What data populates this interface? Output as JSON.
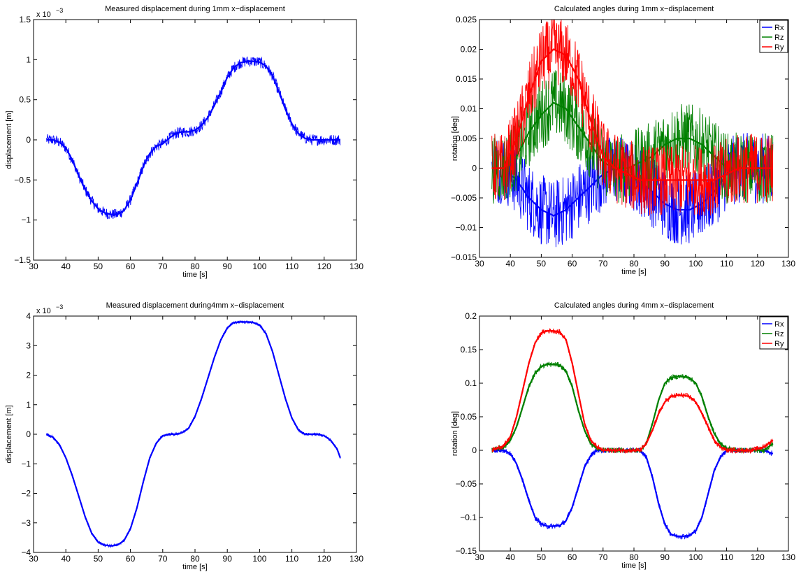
{
  "colors": {
    "Rx": "#0000ff",
    "Rz": "#008000",
    "Ry": "#ff0000",
    "disp": "#0000ff"
  },
  "chart_data": [
    {
      "type": "line",
      "title": "Measured displacement during 1mm x−displacement",
      "xlabel": "time [s]",
      "ylabel": "displacement [m]",
      "exponent_label": "x 10",
      "exponent_power": "−3",
      "xlim": [
        30,
        130
      ],
      "ylim": [
        -1.5,
        1.5
      ],
      "xticks": [
        "30",
        "40",
        "50",
        "60",
        "70",
        "80",
        "90",
        "100",
        "110",
        "120",
        "130"
      ],
      "yticks": [
        "1.5",
        "1",
        "0.5",
        "0",
        "−0.5",
        "−1",
        "−1.5"
      ],
      "noise": 0.07,
      "series": [
        {
          "color": "#0000ff",
          "x": [
            34,
            36,
            38,
            40,
            42,
            44,
            46,
            48,
            50,
            52,
            54,
            56,
            58,
            60,
            62,
            64,
            66,
            68,
            70,
            72,
            74,
            76,
            78,
            80,
            82,
            84,
            86,
            88,
            90,
            92,
            94,
            96,
            98,
            100,
            102,
            104,
            106,
            108,
            110,
            112,
            114,
            116,
            118,
            120,
            122,
            124,
            125
          ],
          "y": [
            0,
            0,
            -0.03,
            -0.1,
            -0.25,
            -0.45,
            -0.62,
            -0.76,
            -0.86,
            -0.91,
            -0.93,
            -0.93,
            -0.88,
            -0.75,
            -0.55,
            -0.33,
            -0.17,
            -0.08,
            -0.05,
            0.02,
            0.08,
            0.1,
            0.1,
            0.12,
            0.18,
            0.28,
            0.43,
            0.6,
            0.78,
            0.9,
            0.96,
            0.98,
            0.98,
            0.97,
            0.92,
            0.8,
            0.6,
            0.38,
            0.2,
            0.08,
            0.02,
            0,
            0,
            0,
            0,
            0,
            0
          ]
        }
      ]
    },
    {
      "type": "line",
      "title": "Calculated angles during 1mm x−displacement",
      "xlabel": "time [s]",
      "ylabel": "rotation [deg]",
      "xlim": [
        30,
        130
      ],
      "ylim": [
        -0.015,
        0.025
      ],
      "xticks": [
        "30",
        "40",
        "50",
        "60",
        "70",
        "80",
        "90",
        "100",
        "110",
        "120",
        "130"
      ],
      "yticks": [
        "0.025",
        "0.02",
        "0.015",
        "0.01",
        "0.005",
        "0",
        "−0.005",
        "−0.01",
        "−0.015"
      ],
      "noise": 0.006,
      "legend": [
        "Rx",
        "Rz",
        "Ry"
      ],
      "series": [
        {
          "name": "Rx",
          "color": "#0000ff",
          "x": [
            34,
            38,
            42,
            46,
            50,
            54,
            58,
            62,
            66,
            70,
            74,
            78,
            82,
            86,
            90,
            94,
            98,
            102,
            106,
            110,
            114,
            118,
            122,
            125
          ],
          "y": [
            0,
            0,
            -0.002,
            -0.005,
            -0.007,
            -0.008,
            -0.007,
            -0.005,
            -0.003,
            -0.001,
            0,
            -0.001,
            -0.002,
            -0.004,
            -0.006,
            -0.007,
            -0.007,
            -0.006,
            -0.004,
            -0.001,
            0,
            0,
            0,
            0
          ]
        },
        {
          "name": "Rz",
          "color": "#008000",
          "x": [
            34,
            38,
            42,
            46,
            50,
            54,
            58,
            62,
            66,
            70,
            74,
            78,
            82,
            86,
            90,
            94,
            98,
            102,
            106,
            110,
            114,
            118,
            122,
            125
          ],
          "y": [
            0,
            0,
            0.002,
            0.006,
            0.009,
            0.011,
            0.01,
            0.007,
            0.004,
            0.001,
            0,
            0,
            0.001,
            0.002,
            0.004,
            0.005,
            0.005,
            0.004,
            0.002,
            0,
            0,
            0,
            0,
            0
          ]
        },
        {
          "name": "Ry",
          "color": "#ff0000",
          "x": [
            34,
            38,
            42,
            46,
            50,
            54,
            58,
            62,
            66,
            70,
            74,
            78,
            82,
            86,
            90,
            94,
            98,
            102,
            106,
            110,
            114,
            118,
            122,
            125
          ],
          "y": [
            0,
            0,
            0.005,
            0.012,
            0.018,
            0.02,
            0.019,
            0.015,
            0.008,
            0.002,
            0,
            -0.001,
            -0.002,
            -0.002,
            -0.002,
            -0.002,
            -0.002,
            -0.002,
            -0.002,
            -0.001,
            0,
            0,
            0,
            0
          ]
        }
      ]
    },
    {
      "type": "line",
      "title": "Measured displacement during4mm x−displacement",
      "xlabel": "time [s]",
      "ylabel": "displacement [m]",
      "exponent_label": "x 10",
      "exponent_power": "−3",
      "xlim": [
        30,
        130
      ],
      "ylim": [
        -4,
        4
      ],
      "xticks": [
        "30",
        "40",
        "50",
        "60",
        "70",
        "80",
        "90",
        "100",
        "110",
        "120",
        "130"
      ],
      "yticks": [
        "4",
        "3",
        "2",
        "1",
        "0",
        "−1",
        "−2",
        "−3",
        "−4"
      ],
      "noise": 0.05,
      "series": [
        {
          "color": "#0000ff",
          "x": [
            34,
            36,
            38,
            40,
            42,
            44,
            46,
            48,
            50,
            52,
            54,
            56,
            58,
            60,
            62,
            64,
            66,
            68,
            70,
            72,
            74,
            76,
            78,
            80,
            82,
            84,
            86,
            88,
            90,
            92,
            94,
            96,
            98,
            100,
            102,
            104,
            106,
            108,
            110,
            112,
            114,
            116,
            118,
            120,
            122,
            124,
            125
          ],
          "y": [
            0,
            -0.1,
            -0.35,
            -0.8,
            -1.4,
            -2.1,
            -2.8,
            -3.35,
            -3.65,
            -3.75,
            -3.78,
            -3.75,
            -3.6,
            -3.2,
            -2.5,
            -1.6,
            -0.8,
            -0.3,
            -0.05,
            0,
            0,
            0.05,
            0.2,
            0.6,
            1.2,
            1.9,
            2.6,
            3.2,
            3.6,
            3.78,
            3.8,
            3.8,
            3.78,
            3.7,
            3.4,
            2.8,
            2.0,
            1.2,
            0.55,
            0.15,
            0,
            0,
            0,
            -0.05,
            -0.2,
            -0.5,
            -0.8
          ]
        }
      ]
    },
    {
      "type": "line",
      "title": "Calculated angles during 4mm x−displacement",
      "xlabel": "time [s]",
      "ylabel": "rotation [deg]",
      "xlim": [
        30,
        130
      ],
      "ylim": [
        -0.15,
        0.2
      ],
      "xticks": [
        "30",
        "40",
        "50",
        "60",
        "70",
        "80",
        "90",
        "100",
        "110",
        "120",
        "130"
      ],
      "yticks": [
        "0.2",
        "0.15",
        "0.1",
        "0.05",
        "0",
        "−0.05",
        "−0.1",
        "−0.15"
      ],
      "noise": 0.004,
      "legend": [
        "Rx",
        "Rz",
        "Ry"
      ],
      "series": [
        {
          "name": "Rx",
          "color": "#0000ff",
          "x": [
            34,
            38,
            40,
            42,
            44,
            46,
            48,
            50,
            52,
            54,
            56,
            58,
            60,
            62,
            64,
            66,
            68,
            70,
            74,
            78,
            82,
            84,
            86,
            88,
            90,
            92,
            94,
            96,
            98,
            100,
            102,
            104,
            106,
            108,
            110,
            114,
            118,
            122,
            125
          ],
          "y": [
            0,
            0,
            -0.005,
            -0.02,
            -0.045,
            -0.075,
            -0.1,
            -0.11,
            -0.113,
            -0.113,
            -0.112,
            -0.105,
            -0.085,
            -0.055,
            -0.025,
            -0.008,
            0,
            0,
            0,
            0,
            0,
            -0.01,
            -0.04,
            -0.08,
            -0.11,
            -0.125,
            -0.128,
            -0.128,
            -0.127,
            -0.12,
            -0.1,
            -0.065,
            -0.03,
            -0.01,
            0,
            0,
            0,
            0,
            -0.005
          ]
        },
        {
          "name": "Rz",
          "color": "#008000",
          "x": [
            34,
            38,
            40,
            42,
            44,
            46,
            48,
            50,
            52,
            54,
            56,
            58,
            60,
            62,
            64,
            66,
            68,
            70,
            74,
            78,
            82,
            84,
            86,
            88,
            90,
            92,
            94,
            96,
            98,
            100,
            102,
            104,
            106,
            108,
            110,
            114,
            118,
            122,
            125
          ],
          "y": [
            0,
            0.005,
            0.015,
            0.035,
            0.065,
            0.095,
            0.115,
            0.125,
            0.128,
            0.128,
            0.127,
            0.118,
            0.095,
            0.06,
            0.03,
            0.01,
            0.003,
            0,
            0,
            0,
            0,
            0.01,
            0.04,
            0.075,
            0.1,
            0.108,
            0.11,
            0.11,
            0.108,
            0.1,
            0.08,
            0.05,
            0.025,
            0.01,
            0.003,
            0,
            0,
            0,
            0.01
          ]
        },
        {
          "name": "Ry",
          "color": "#ff0000",
          "x": [
            34,
            38,
            40,
            42,
            44,
            46,
            48,
            50,
            52,
            54,
            56,
            58,
            60,
            62,
            64,
            66,
            68,
            70,
            74,
            78,
            82,
            84,
            86,
            88,
            90,
            92,
            94,
            96,
            98,
            100,
            102,
            104,
            106,
            108,
            110,
            114,
            118,
            122,
            125
          ],
          "y": [
            0,
            0.007,
            0.02,
            0.05,
            0.09,
            0.13,
            0.16,
            0.175,
            0.178,
            0.178,
            0.176,
            0.165,
            0.13,
            0.085,
            0.04,
            0.015,
            0.005,
            0,
            0,
            0,
            0,
            0.01,
            0.03,
            0.055,
            0.072,
            0.08,
            0.082,
            0.082,
            0.08,
            0.072,
            0.055,
            0.035,
            0.015,
            0.005,
            0,
            0,
            0,
            0.005,
            0.015
          ]
        }
      ]
    }
  ]
}
